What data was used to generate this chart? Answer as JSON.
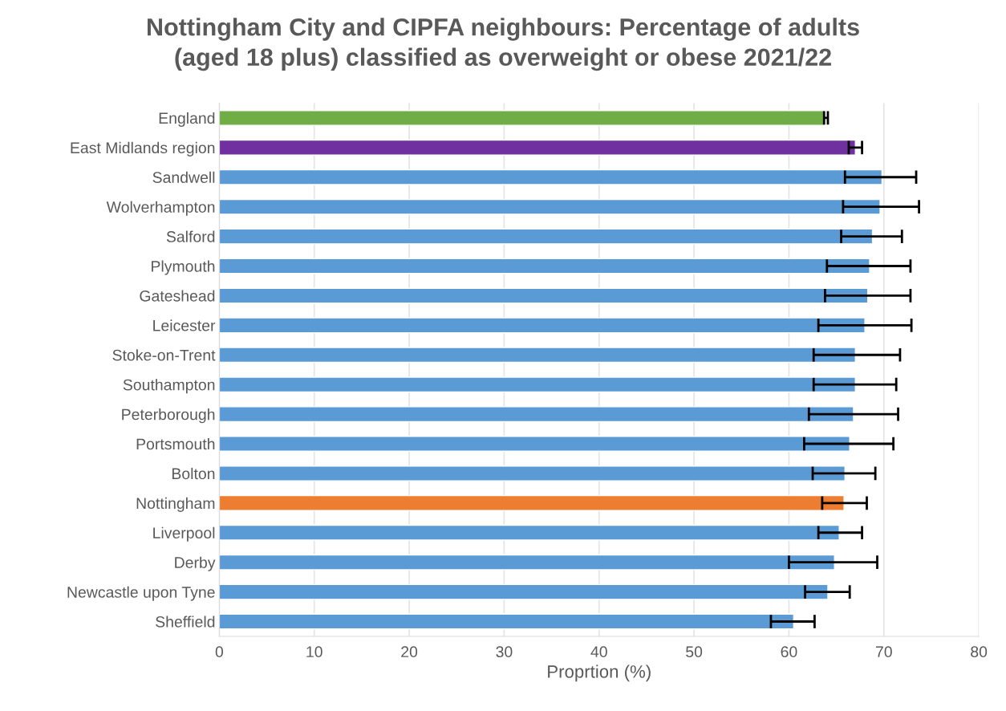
{
  "chart_data": {
    "type": "bar",
    "orientation": "horizontal",
    "title": "Nottingham City and CIPFA neighbours: Percentage of adults\n(aged 18 plus) classified as overweight or obese 2021/22",
    "xlabel": "Proprtion (%)",
    "categories": [
      "England",
      "East Midlands region",
      "Sandwell",
      "Wolverhampton",
      "Salford",
      "Plymouth",
      "Gateshead",
      "Leicester",
      "Stoke-on-Trent",
      "Southampton",
      "Peterborough",
      "Portsmouth",
      "Bolton",
      "Nottingham",
      "Liverpool",
      "Derby",
      "Newcastle upon Tyne",
      "Sheffield"
    ],
    "values": [
      63.8,
      67.0,
      69.8,
      69.6,
      68.8,
      68.5,
      68.3,
      68.0,
      67.0,
      67.0,
      66.8,
      66.4,
      65.9,
      65.8,
      65.3,
      64.8,
      64.1,
      60.5
    ],
    "errors": [
      [
        63.7,
        64.1
      ],
      [
        66.3,
        67.7
      ],
      [
        65.9,
        73.4
      ],
      [
        65.7,
        73.7
      ],
      [
        65.5,
        71.9
      ],
      [
        64.0,
        72.8
      ],
      [
        63.8,
        72.8
      ],
      [
        63.1,
        72.9
      ],
      [
        62.6,
        71.7
      ],
      [
        62.6,
        71.3
      ],
      [
        62.1,
        71.5
      ],
      [
        61.6,
        71.0
      ],
      [
        62.5,
        69.1
      ],
      [
        63.5,
        68.2
      ],
      [
        63.1,
        67.7
      ],
      [
        60.0,
        69.3
      ],
      [
        61.7,
        66.4
      ],
      [
        58.1,
        62.7
      ]
    ],
    "colors": [
      "#70ad47",
      "#7030a0",
      "#5b9bd5",
      "#5b9bd5",
      "#5b9bd5",
      "#5b9bd5",
      "#5b9bd5",
      "#5b9bd5",
      "#5b9bd5",
      "#5b9bd5",
      "#5b9bd5",
      "#5b9bd5",
      "#5b9bd5",
      "#ed7d31",
      "#5b9bd5",
      "#5b9bd5",
      "#5b9bd5",
      "#5b9bd5"
    ],
    "xlim": [
      0,
      80
    ],
    "xticks": [
      0,
      10,
      20,
      30,
      40,
      50,
      60,
      70,
      80
    ],
    "grid": "x"
  }
}
